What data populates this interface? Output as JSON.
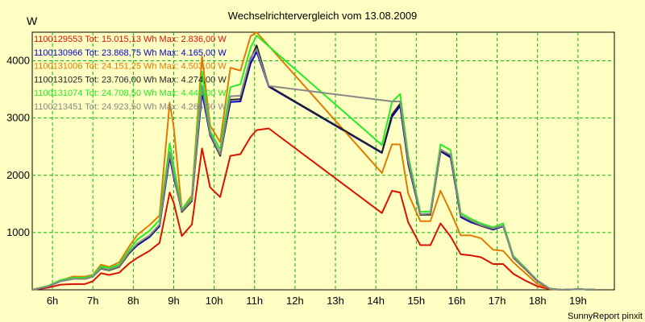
{
  "chart_data": {
    "type": "line",
    "title": "Wechselrichtervergleich vom 13.08.2009",
    "ylabel": "W",
    "xlabel": "",
    "ylim": [
      0,
      4500
    ],
    "xlim": [
      5.5,
      19.9
    ],
    "grid": true,
    "legend_position": "top-left",
    "y_ticks": [
      1000,
      2000,
      3000,
      4000
    ],
    "y_tick_labels": [
      "1000",
      "2000",
      "3000",
      "4000"
    ],
    "x_ticks": [
      6,
      7,
      8,
      9,
      10,
      11,
      12,
      13,
      14,
      15,
      16,
      17,
      18,
      19
    ],
    "x_tick_labels": [
      "6h",
      "7h",
      "8h",
      "9h",
      "10h",
      "11h",
      "12h",
      "13h",
      "14h",
      "15h",
      "16h",
      "17h",
      "18h",
      "19h"
    ],
    "footer": "SunnyReport pinxit",
    "series": [
      {
        "name": "1100129553",
        "label": "1100129553 Tot: 15.015,13 Wh Max: 2.836,00 W",
        "color": "#dd1100",
        "x": [
          5.5,
          5.9,
          6.2,
          6.5,
          6.8,
          7.0,
          7.2,
          7.4,
          7.65,
          7.9,
          8.1,
          8.4,
          8.65,
          8.9,
          9.0,
          9.2,
          9.45,
          9.7,
          9.9,
          10.15,
          10.4,
          10.65,
          10.9,
          11.05,
          11.35,
          14.15,
          14.4,
          14.6,
          14.8,
          15.1,
          15.35,
          15.6,
          15.85,
          16.1,
          16.35,
          16.6,
          16.9,
          17.15,
          17.4,
          17.7,
          18.0,
          18.3,
          18.6,
          19.0,
          19.45
        ],
        "y": [
          0,
          40,
          90,
          100,
          100,
          150,
          290,
          260,
          300,
          460,
          560,
          680,
          820,
          1700,
          1520,
          940,
          1140,
          2470,
          1790,
          1620,
          2340,
          2370,
          2670,
          2790,
          2820,
          1340,
          1730,
          1700,
          1180,
          780,
          780,
          1160,
          930,
          620,
          600,
          570,
          450,
          450,
          280,
          160,
          60,
          10,
          0,
          10,
          0
        ]
      },
      {
        "name": "1100130966",
        "label": "1100130966 Tot: 23.868,75 Wh Max: 4.165,00 W",
        "color": "#0000cc",
        "x": [
          5.5,
          5.9,
          6.2,
          6.5,
          6.8,
          7.0,
          7.2,
          7.4,
          7.65,
          7.9,
          8.1,
          8.4,
          8.65,
          8.9,
          9.0,
          9.2,
          9.45,
          9.7,
          9.9,
          10.15,
          10.4,
          10.65,
          10.9,
          11.05,
          11.35,
          14.15,
          14.4,
          14.6,
          14.8,
          15.1,
          15.35,
          15.6,
          15.85,
          16.1,
          16.35,
          16.6,
          16.9,
          17.15,
          17.4,
          17.7,
          18.0,
          18.3,
          18.6,
          19.0,
          19.45
        ],
        "y": [
          0,
          60,
          150,
          190,
          190,
          230,
          380,
          350,
          410,
          640,
          780,
          920,
          1110,
          2320,
          1960,
          1390,
          1560,
          3450,
          2700,
          2350,
          3280,
          3290,
          3950,
          4160,
          3550,
          2390,
          3020,
          3210,
          2200,
          1310,
          1320,
          2420,
          2310,
          1270,
          1180,
          1120,
          1050,
          1110,
          580,
          370,
          160,
          20,
          0,
          10,
          0
        ]
      },
      {
        "name": "1100131006",
        "label": "1100131006 Tot: 24.151,25 Wh Max: 4.503,00 W",
        "color": "#e07b00",
        "x": [
          5.5,
          5.9,
          6.2,
          6.5,
          6.8,
          7.0,
          7.2,
          7.4,
          7.65,
          7.9,
          8.1,
          8.4,
          8.65,
          8.9,
          9.0,
          9.2,
          9.45,
          9.7,
          9.9,
          10.15,
          10.4,
          10.65,
          10.9,
          11.05,
          14.15,
          14.4,
          14.6,
          14.8,
          15.1,
          15.35,
          15.6,
          15.85,
          16.1,
          16.35,
          16.6,
          16.9,
          17.15,
          17.4,
          17.7,
          18.0,
          18.3,
          18.6,
          19.0,
          19.45
        ],
        "y": [
          0,
          70,
          160,
          230,
          230,
          260,
          440,
          400,
          480,
          760,
          960,
          1130,
          1300,
          3270,
          2840,
          1400,
          1650,
          4080,
          2870,
          2580,
          3880,
          3830,
          4430,
          4500,
          2040,
          2540,
          2540,
          1680,
          1200,
          1200,
          1730,
          1360,
          950,
          950,
          900,
          700,
          680,
          480,
          290,
          100,
          20,
          0,
          10,
          0
        ]
      },
      {
        "name": "1100131025",
        "label": "1100131025 Tot: 23.706,00 Wh Max: 4.274,00 W",
        "color": "#222222",
        "x": [
          5.5,
          5.9,
          6.2,
          6.5,
          6.8,
          7.0,
          7.2,
          7.4,
          7.65,
          7.9,
          8.1,
          8.4,
          8.65,
          8.9,
          9.0,
          9.2,
          9.45,
          9.7,
          9.9,
          10.15,
          10.4,
          10.65,
          10.9,
          11.05,
          11.35,
          14.15,
          14.4,
          14.6,
          14.8,
          15.1,
          15.35,
          15.6,
          15.85,
          16.1,
          16.35,
          16.6,
          16.9,
          17.15,
          17.4,
          17.7,
          18.0,
          18.3,
          18.6,
          19.0,
          19.45
        ],
        "y": [
          0,
          60,
          150,
          190,
          190,
          230,
          370,
          340,
          400,
          640,
          800,
          940,
          1130,
          2380,
          2000,
          1360,
          1550,
          3550,
          2720,
          2340,
          3320,
          3330,
          4030,
          4270,
          3560,
          2400,
          3060,
          3250,
          2230,
          1310,
          1310,
          2430,
          2340,
          1290,
          1200,
          1120,
          1060,
          1120,
          560,
          360,
          150,
          20,
          0,
          10,
          0
        ]
      },
      {
        "name": "1100131074",
        "label": "1100131074 Tot: 24.708,50 Wh Max: 4.443,00 W",
        "color": "#22ee22",
        "x": [
          5.5,
          5.9,
          6.2,
          6.5,
          6.8,
          7.0,
          7.2,
          7.4,
          7.65,
          7.9,
          8.1,
          8.4,
          8.65,
          8.9,
          9.0,
          9.2,
          9.45,
          9.7,
          9.9,
          10.15,
          10.4,
          10.65,
          10.9,
          11.05,
          14.15,
          14.4,
          14.6,
          14.8,
          15.1,
          15.35,
          15.6,
          15.85,
          16.1,
          16.35,
          16.6,
          16.9,
          17.15,
          17.4,
          17.7,
          18.0,
          18.3,
          18.6,
          19.0,
          19.45
        ],
        "y": [
          0,
          70,
          170,
          210,
          210,
          250,
          410,
          380,
          440,
          700,
          880,
          1030,
          1220,
          2560,
          2160,
          1410,
          1610,
          3810,
          2780,
          2450,
          3540,
          3590,
          4230,
          4440,
          2530,
          3280,
          3420,
          2340,
          1360,
          1370,
          2540,
          2440,
          1340,
          1240,
          1160,
          1090,
          1160,
          590,
          380,
          160,
          20,
          0,
          10,
          0
        ]
      },
      {
        "name": "1100213451",
        "label": "1100213451 Tot: 24.923,50 Wh Max: 4.266,00 W",
        "color": "#888888",
        "x": [
          5.5,
          5.9,
          6.2,
          6.5,
          6.8,
          7.0,
          7.2,
          7.4,
          7.65,
          7.9,
          8.1,
          8.4,
          8.65,
          8.9,
          9.0,
          9.2,
          9.45,
          9.7,
          9.9,
          10.15,
          10.4,
          10.65,
          10.9,
          11.05,
          11.35,
          14.4,
          14.6,
          14.8,
          15.1,
          15.35,
          15.6,
          15.85,
          16.1,
          16.35,
          16.6,
          16.9,
          17.15,
          17.4,
          17.7,
          18.0,
          18.3,
          18.6,
          19.0,
          19.45
        ],
        "y": [
          0,
          60,
          150,
          190,
          190,
          230,
          380,
          350,
          410,
          660,
          810,
          950,
          1140,
          2400,
          2010,
          1380,
          1570,
          3570,
          2730,
          2370,
          3380,
          3390,
          4060,
          4200,
          3560,
          3290,
          3290,
          2260,
          1320,
          1330,
          2450,
          2360,
          1300,
          1210,
          1130,
          1070,
          1120,
          570,
          370,
          160,
          20,
          0,
          10,
          0
        ]
      }
    ]
  }
}
